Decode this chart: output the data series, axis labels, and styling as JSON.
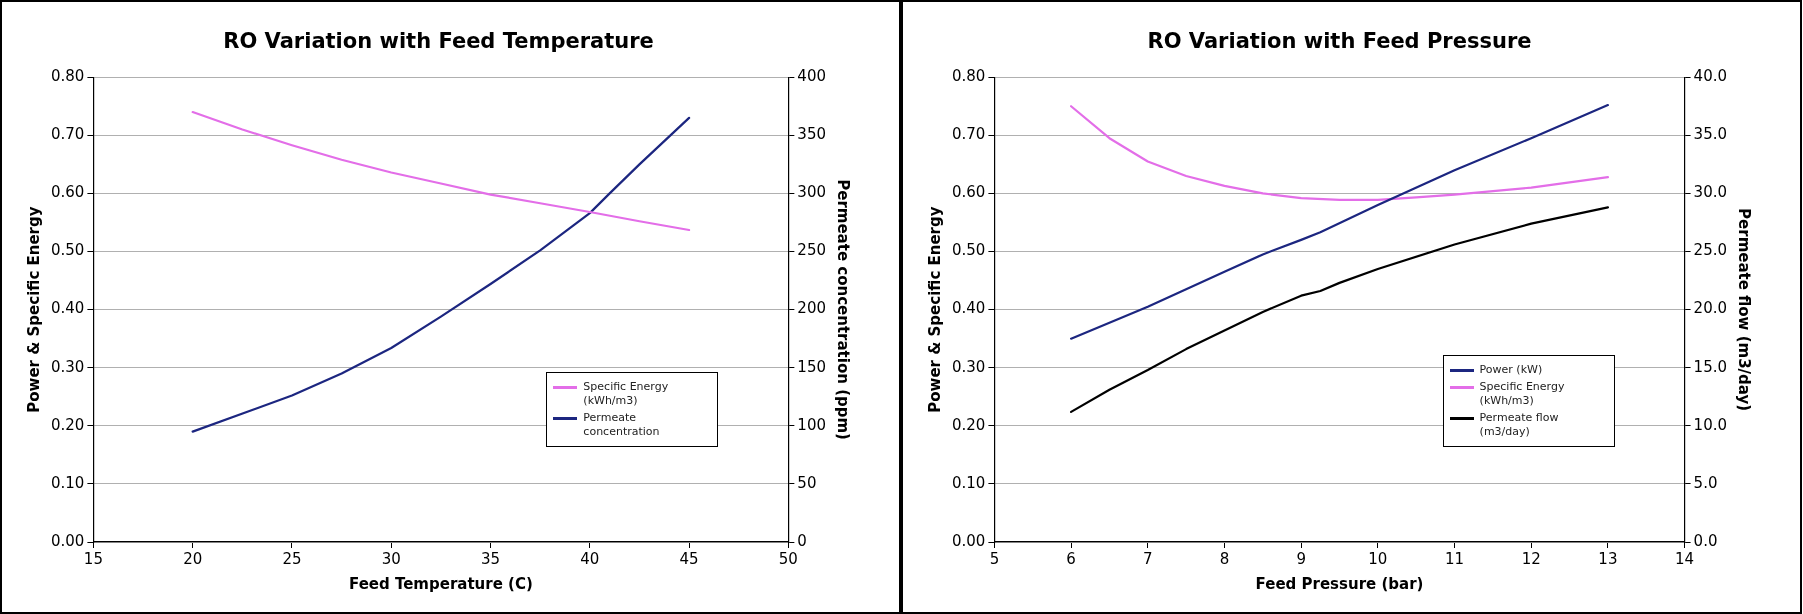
{
  "chart_data": [
    {
      "type": "line",
      "title": "RO Variation with Feed Temperature",
      "xlabel": "Feed Temperature (C)",
      "ylabel": "Power & Specific Energy",
      "y2label": "Permeate concentration (ppm)",
      "xlim": [
        15,
        50
      ],
      "xticks": [
        15,
        20,
        25,
        30,
        35,
        40,
        45,
        50
      ],
      "ylim": [
        0,
        0.8
      ],
      "yticks": [
        {
          "value": 0,
          "label": "0.00"
        },
        {
          "value": 0.1,
          "label": "0.10"
        },
        {
          "value": 0.2,
          "label": "0.20"
        },
        {
          "value": 0.3,
          "label": "0.30"
        },
        {
          "value": 0.4,
          "label": "0.40"
        },
        {
          "value": 0.5,
          "label": "0.50"
        },
        {
          "value": 0.6,
          "label": "0.60"
        },
        {
          "value": 0.7,
          "label": "0.70"
        },
        {
          "value": 0.8,
          "label": "0.80"
        }
      ],
      "y2lim": [
        0,
        400
      ],
      "y2ticks": [
        0,
        50,
        100,
        150,
        200,
        250,
        300,
        350,
        400
      ],
      "grid": "y",
      "legend": "bottom right",
      "marker": "none",
      "line_style": "solid",
      "series": [
        {
          "name": "Specific Energy (kWh/m3)",
          "color": "#e36ee8",
          "x": [
            20,
            22.5,
            25,
            27.5,
            30,
            32.5,
            35,
            37.5,
            40,
            42.5,
            45
          ],
          "values": [
            0.74,
            0.71,
            0.683,
            0.658,
            0.636,
            0.617,
            0.598,
            0.583,
            0.568,
            0.552,
            0.537
          ]
        },
        {
          "name": "Permeate concentration",
          "color": "#1c2680",
          "axis": "y2",
          "x": [
            20,
            25,
            27.5,
            30,
            32.5,
            35,
            37.5,
            40,
            41,
            42.5,
            45
          ],
          "values": [
            95,
            126,
            145,
            167,
            194,
            222,
            251,
            283,
            300,
            325,
            365
          ]
        }
      ]
    },
    {
      "type": "line",
      "title": "RO Variation with Feed Pressure",
      "xlabel": "Feed Pressure (bar)",
      "ylabel": "Power & Specific Energy",
      "y2label": "Permeate flow (m3/day)",
      "xlim": [
        5,
        14
      ],
      "xticks": [
        5,
        6,
        7,
        8,
        9,
        10,
        11,
        12,
        13,
        14
      ],
      "ylim": [
        0,
        0.8
      ],
      "yticks": [
        {
          "value": 0,
          "label": "0.00"
        },
        {
          "value": 0.1,
          "label": "0.10"
        },
        {
          "value": 0.2,
          "label": "0.20"
        },
        {
          "value": 0.3,
          "label": "0.30"
        },
        {
          "value": 0.4,
          "label": "0.40"
        },
        {
          "value": 0.5,
          "label": "0.50"
        },
        {
          "value": 0.6,
          "label": "0.60"
        },
        {
          "value": 0.7,
          "label": "0.70"
        },
        {
          "value": 0.8,
          "label": "0.80"
        }
      ],
      "y2lim": [
        0,
        40
      ],
      "y2ticks": [
        {
          "value": 0,
          "label": "0.0"
        },
        {
          "value": 5,
          "label": "5.0"
        },
        {
          "value": 10,
          "label": "10.0"
        },
        {
          "value": 15,
          "label": "15.0"
        },
        {
          "value": 20,
          "label": "20.0"
        },
        {
          "value": 25,
          "label": "25.0"
        },
        {
          "value": 30,
          "label": "30.0"
        },
        {
          "value": 35,
          "label": "35.0"
        },
        {
          "value": 40,
          "label": "40.0"
        }
      ],
      "grid": "y",
      "legend": "bottom right",
      "marker": "none",
      "line_style": "solid",
      "series": [
        {
          "name": "Power (kW)",
          "color": "#1c2680",
          "x": [
            6,
            7,
            7.5,
            8,
            8.5,
            9,
            9.25,
            10,
            11,
            12,
            13
          ],
          "values": [
            0.35,
            0.405,
            0.435,
            0.465,
            0.495,
            0.52,
            0.533,
            0.58,
            0.64,
            0.695,
            0.752
          ]
        },
        {
          "name": "Specific Energy (kWh/m3)",
          "color": "#e36ee8",
          "x": [
            6,
            6.5,
            7,
            7.5,
            8,
            8.5,
            9,
            9.5,
            10,
            10.5,
            11,
            12,
            13
          ],
          "values": [
            0.75,
            0.695,
            0.655,
            0.63,
            0.613,
            0.6,
            0.592,
            0.589,
            0.589,
            0.593,
            0.598,
            0.61,
            0.628
          ]
        },
        {
          "name": "Permeate flow (m3/day)",
          "color": "#000000",
          "axis": "y2",
          "x": [
            6,
            6.5,
            7,
            7.5,
            8,
            8.5,
            9,
            9.25,
            9.5,
            10,
            11,
            12,
            13
          ],
          "values": [
            11.2,
            13.1,
            14.8,
            16.6,
            18.2,
            19.8,
            21.2,
            21.6,
            22.3,
            23.5,
            25.6,
            27.4,
            28.8
          ]
        }
      ]
    }
  ]
}
